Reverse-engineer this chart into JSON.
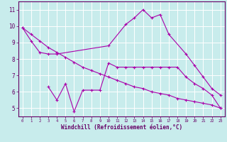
{
  "title": "",
  "xlabel": "Windchill (Refroidissement éolien,°C)",
  "ylabel": "",
  "bg_color": "#c8ecec",
  "plot_bg_color": "#c8ecec",
  "line_color": "#aa00aa",
  "grid_color": "#ffffff",
  "axis_color": "#660066",
  "tick_color": "#660066",
  "label_color": "#660066",
  "xlim": [
    -0.5,
    23.5
  ],
  "ylim": [
    4.5,
    11.5
  ],
  "yticks": [
    5,
    6,
    7,
    8,
    9,
    10,
    11
  ],
  "xticks": [
    0,
    1,
    2,
    3,
    4,
    5,
    6,
    7,
    8,
    9,
    10,
    11,
    12,
    13,
    14,
    15,
    16,
    17,
    18,
    19,
    20,
    21,
    22,
    23
  ],
  "line1_x": [
    0,
    1,
    2,
    3,
    4,
    10,
    12,
    13,
    14,
    15,
    16,
    17,
    19,
    20,
    21,
    22,
    23
  ],
  "line1_y": [
    9.9,
    9.1,
    8.4,
    8.3,
    8.3,
    8.8,
    10.1,
    10.5,
    11.0,
    10.5,
    10.7,
    9.5,
    8.3,
    7.6,
    6.9,
    6.2,
    5.8
  ],
  "line2_x": [
    0,
    1,
    2,
    3,
    4,
    5,
    6,
    7,
    8,
    9,
    10,
    11,
    12,
    13,
    14,
    15,
    16,
    17,
    18,
    19,
    20,
    21,
    22,
    23
  ],
  "line2_y": [
    9.9,
    9.5,
    9.1,
    8.7,
    8.4,
    8.1,
    7.8,
    7.5,
    7.3,
    7.1,
    6.9,
    6.7,
    6.5,
    6.3,
    6.2,
    6.0,
    5.9,
    5.8,
    5.6,
    5.5,
    5.4,
    5.3,
    5.2,
    5.0
  ],
  "line3_x": [
    3,
    4,
    5,
    6,
    7,
    8,
    9,
    10,
    11,
    12,
    13,
    14,
    15,
    16,
    17,
    18,
    19,
    20,
    21,
    22,
    23
  ],
  "line3_y": [
    6.3,
    5.5,
    6.5,
    4.8,
    6.1,
    6.1,
    6.1,
    7.75,
    7.5,
    7.5,
    7.5,
    7.5,
    7.5,
    7.5,
    7.5,
    7.5,
    6.9,
    6.5,
    6.2,
    5.8,
    5.0
  ]
}
